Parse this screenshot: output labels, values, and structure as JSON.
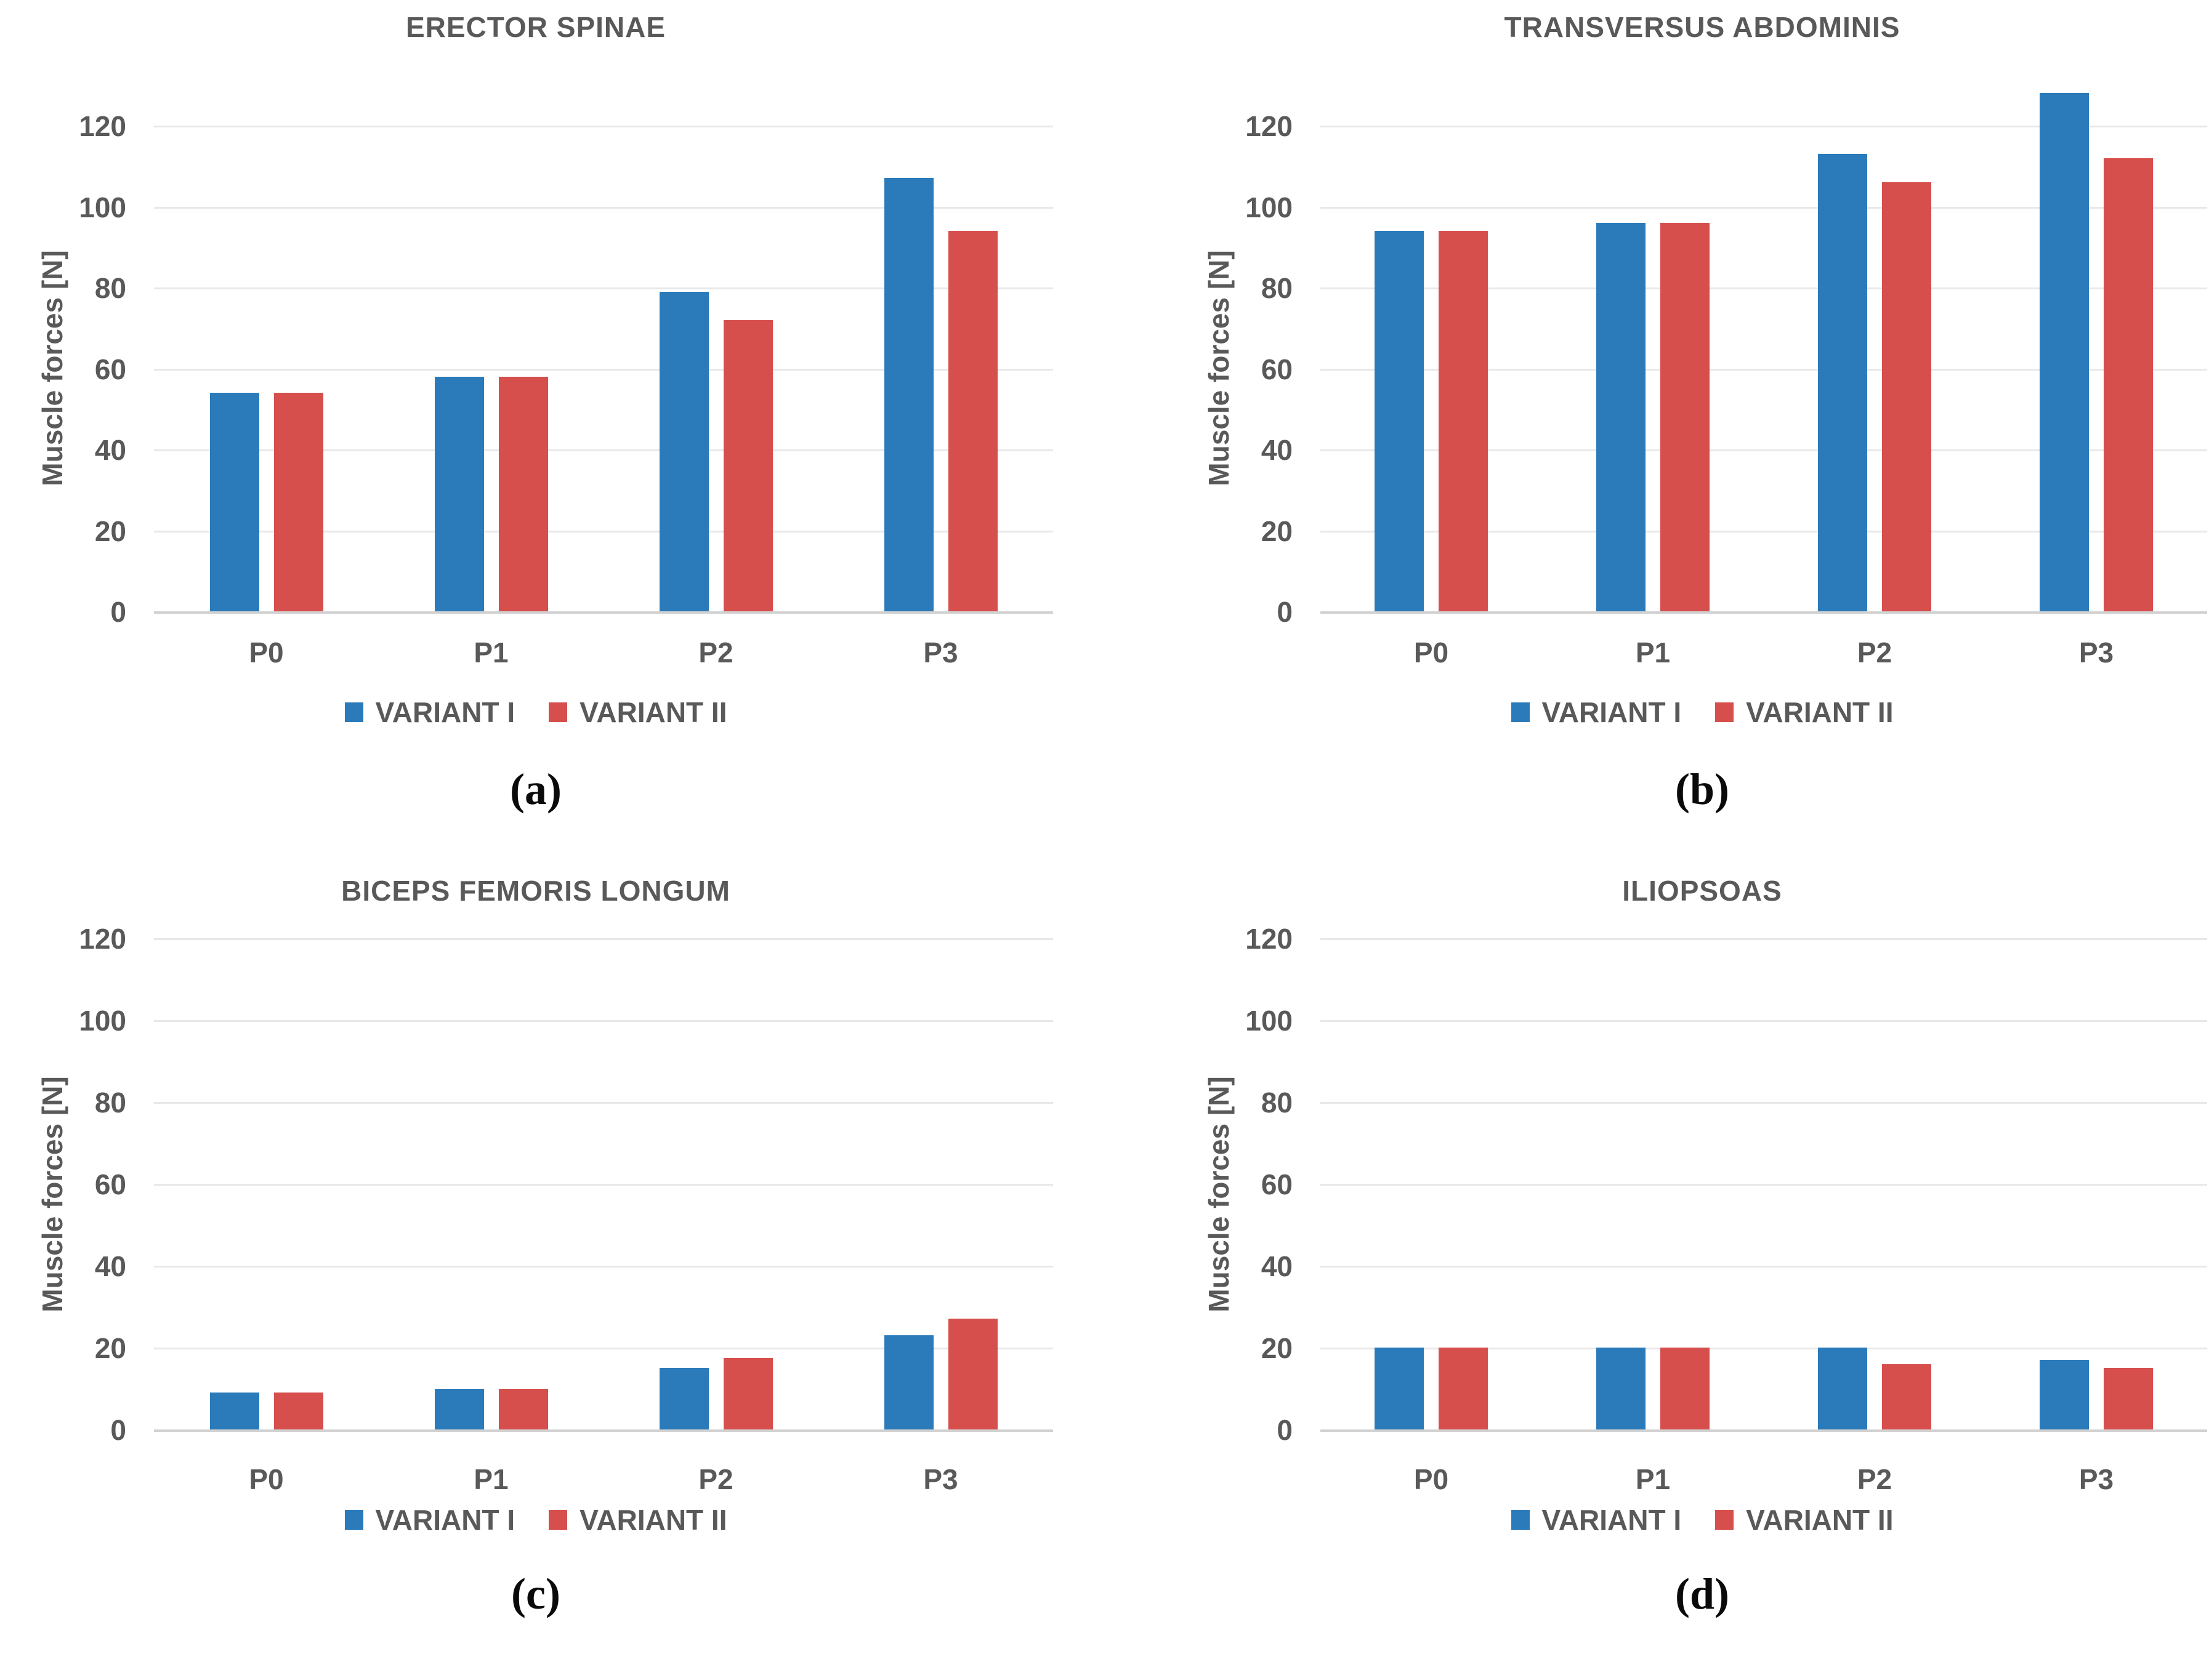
{
  "figure": {
    "background": "#ffffff",
    "text_color": "#595959",
    "grid_color": "#e8e8e8",
    "axis_color": "#d2d2d2",
    "caption_color": "#0a0a0a"
  },
  "chart_data": [
    {
      "type": "bar",
      "title": "ERECTOR SPINAE",
      "caption": "(a)",
      "ylabel": "Muscle forces [N]",
      "xlabel": "",
      "categories": [
        "P0",
        "P1",
        "P2",
        "P3"
      ],
      "series": [
        {
          "name": "VARIANT I",
          "color": "#2b7bba",
          "values": [
            54,
            58,
            79,
            107
          ]
        },
        {
          "name": "VARIANT II",
          "color": "#d64f4d",
          "values": [
            54,
            58,
            72,
            94
          ]
        }
      ],
      "yticks": [
        0,
        20,
        40,
        60,
        80,
        100,
        120
      ],
      "ylim": [
        0,
        135
      ],
      "grid": true,
      "legend_position": "bottom"
    },
    {
      "type": "bar",
      "title": "TRANSVERSUS ABDOMINIS",
      "caption": "(b)",
      "ylabel": "Muscle forces [N]",
      "xlabel": "",
      "categories": [
        "P0",
        "P1",
        "P2",
        "P3"
      ],
      "series": [
        {
          "name": "VARIANT I",
          "color": "#2b7bba",
          "values": [
            94,
            96,
            113,
            128
          ]
        },
        {
          "name": "VARIANT II",
          "color": "#d64f4d",
          "values": [
            94,
            96,
            106,
            112
          ]
        }
      ],
      "yticks": [
        0,
        20,
        40,
        60,
        80,
        100,
        120
      ],
      "ylim": [
        0,
        135
      ],
      "grid": true,
      "legend_position": "bottom"
    },
    {
      "type": "bar",
      "title": "BICEPS FEMORIS LONGUM",
      "caption": "(c)",
      "ylabel": "Muscle forces [N]",
      "xlabel": "",
      "categories": [
        "P0",
        "P1",
        "P2",
        "P3"
      ],
      "series": [
        {
          "name": "VARIANT I",
          "color": "#2b7bba",
          "values": [
            9,
            10,
            15,
            23
          ]
        },
        {
          "name": "VARIANT II",
          "color": "#d64f4d",
          "values": [
            9,
            10,
            17.5,
            27
          ]
        }
      ],
      "yticks": [
        0,
        20,
        40,
        60,
        80,
        100,
        120
      ],
      "ylim": [
        0,
        135
      ],
      "grid": true,
      "legend_position": "bottom"
    },
    {
      "type": "bar",
      "title": "ILIOPSOAS",
      "caption": "(d)",
      "ylabel": "Muscle forces [N]",
      "xlabel": "",
      "categories": [
        "P0",
        "P1",
        "P2",
        "P3"
      ],
      "series": [
        {
          "name": "VARIANT I",
          "color": "#2b7bba",
          "values": [
            20,
            20,
            20,
            17
          ]
        },
        {
          "name": "VARIANT II",
          "color": "#d64f4d",
          "values": [
            20,
            20,
            16,
            15
          ]
        }
      ],
      "yticks": [
        0,
        20,
        40,
        60,
        80,
        100,
        120
      ],
      "ylim": [
        0,
        135
      ],
      "grid": true,
      "legend_position": "bottom"
    }
  ]
}
